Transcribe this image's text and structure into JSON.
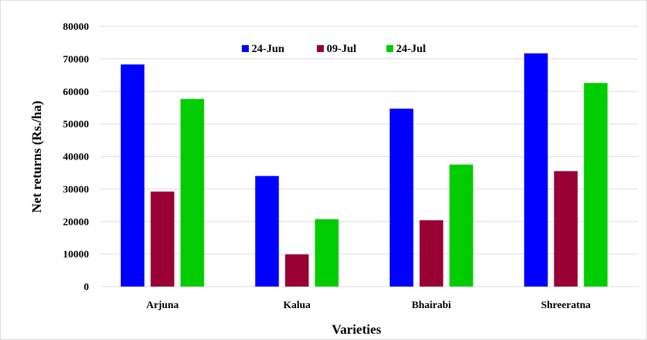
{
  "chart_data": {
    "type": "bar",
    "title": "",
    "xlabel": "Varieties",
    "ylabel": "Net returns  (Rs./ha)",
    "categories": [
      "Arjuna",
      "Kalua",
      "Bhairabi",
      "Shreeratna"
    ],
    "series": [
      {
        "name": "24-Jun",
        "color": "#0000ff",
        "values": [
          68300,
          34000,
          54700,
          71700
        ]
      },
      {
        "name": "09-Jul",
        "color": "#990033",
        "values": [
          29200,
          9900,
          20400,
          35500
        ]
      },
      {
        "name": "24-Jul",
        "color": "#00cc00",
        "values": [
          57700,
          20700,
          37500,
          62600
        ]
      }
    ],
    "ylim": [
      0,
      80000
    ],
    "yticks": [
      0,
      10000,
      20000,
      30000,
      40000,
      50000,
      60000,
      70000,
      80000
    ],
    "grid": true,
    "legend_position": "top-center"
  }
}
